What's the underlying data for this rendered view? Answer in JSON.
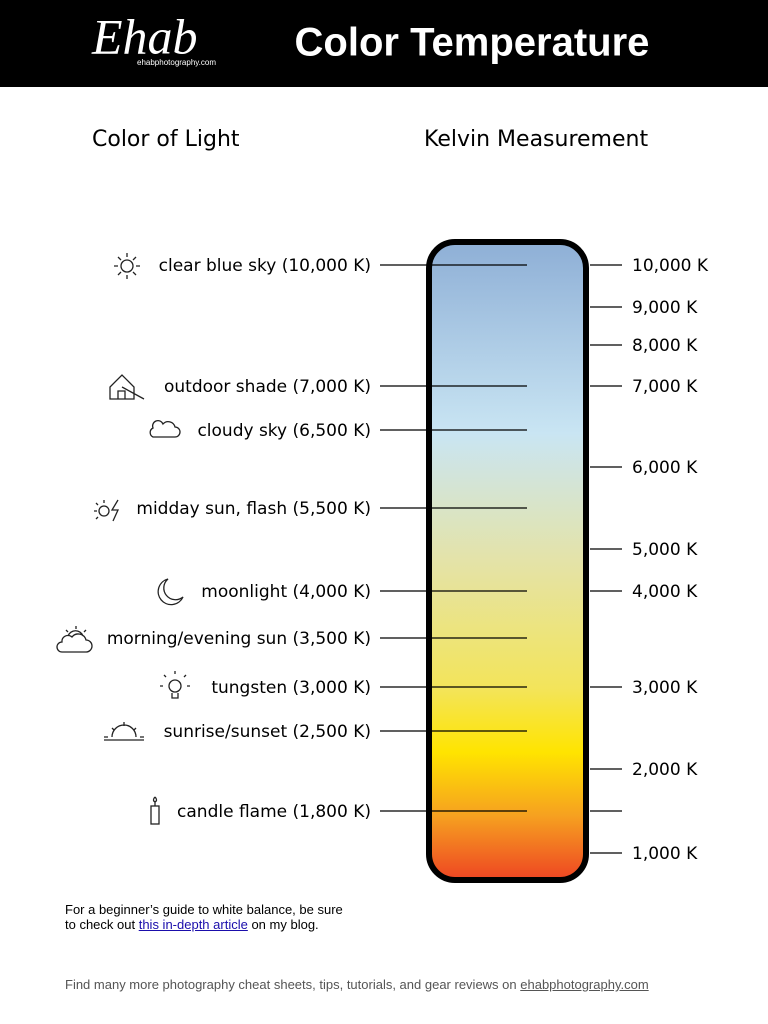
{
  "header": {
    "logo": "Ehab",
    "logo_url": "ehabphotography.com",
    "title": "Color Temperature"
  },
  "columns": {
    "left": "Color of Light",
    "right": "Kelvin Measurement"
  },
  "light_sources": [
    "clear blue sky (10,000 K)",
    "outdoor shade (7,000 K)",
    "cloudy sky (6,500 K)",
    "midday sun, flash (5,500 K)",
    "moonlight (4,000 K)",
    "morning/evening sun (3,500 K)",
    "tungsten (3,000 K)",
    "sunrise/sunset (2,500 K)",
    "candle flame (1,800 K)"
  ],
  "kelvin_ticks": [
    "10,000 K",
    "9,000 K",
    "8,000 K",
    "7,000 K",
    "6,000 K",
    "5,000 K",
    "4,000 K",
    "3,000 K",
    "2,000 K",
    "1,000 K"
  ],
  "note": {
    "line1": "For a beginner’s guide to white balance, be sure",
    "line2_before": "to check out ",
    "link": "this in-depth article",
    "line2_after": " on my blog."
  },
  "footer": {
    "text": "Find many more photography cheat sheets, tips, tutorials, and gear reviews on ",
    "link": "ehabphotography.com"
  }
}
